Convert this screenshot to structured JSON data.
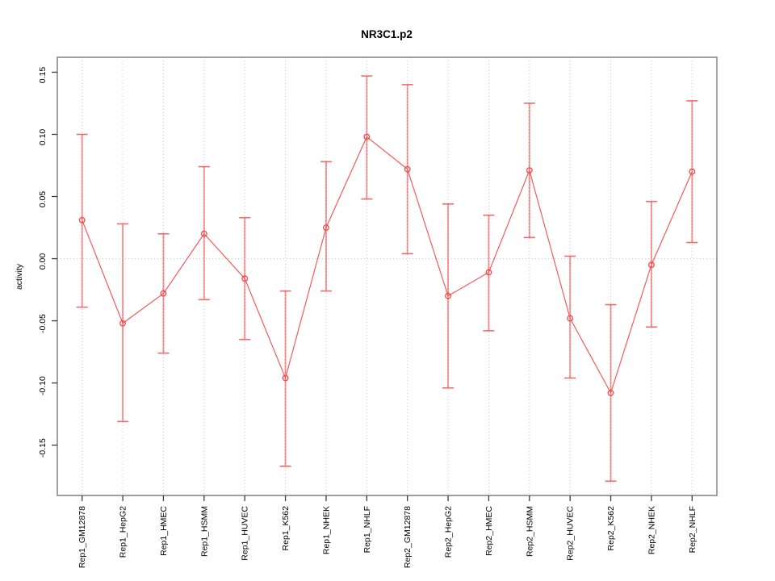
{
  "figure": {
    "background": "#ffffff"
  },
  "chart_data": {
    "type": "line",
    "title": "NR3C1.p2",
    "xlabel": "",
    "ylabel": "activity",
    "legend": "none",
    "grid": "vertical dotted gridline at every category; dotted horizontal line at y=0",
    "categories": [
      "Rep1_GM12878",
      "Rep1_HepG2",
      "Rep1_HMEC",
      "Rep1_HSMM",
      "Rep1_HUVEC",
      "Rep1_K562",
      "Rep1_NHEK",
      "Rep1_NHLF",
      "Rep2_GM12878",
      "Rep2_HepG2",
      "Rep2_HMEC",
      "Rep2_HSMM",
      "Rep2_HUVEC",
      "Rep2_K562",
      "Rep2_NHEK",
      "Rep2_NHLF"
    ],
    "series": [
      {
        "name": "activity",
        "values": [
          0.031,
          -0.052,
          -0.028,
          0.02,
          -0.016,
          -0.096,
          0.025,
          0.098,
          0.072,
          -0.03,
          -0.011,
          0.071,
          -0.048,
          -0.108,
          -0.005,
          0.07
        ],
        "upper": [
          0.1,
          0.028,
          0.02,
          0.074,
          0.033,
          -0.026,
          0.078,
          0.147,
          0.14,
          0.044,
          0.035,
          0.125,
          0.002,
          -0.037,
          0.046,
          0.127
        ],
        "lower": [
          -0.039,
          -0.131,
          -0.076,
          -0.033,
          -0.065,
          -0.167,
          -0.026,
          0.048,
          0.004,
          -0.104,
          -0.058,
          0.017,
          -0.096,
          -0.179,
          -0.055,
          0.013
        ]
      }
    ],
    "ylim": [
      -0.1905,
      0.162
    ],
    "yticks": [
      -0.15,
      -0.1,
      -0.05,
      0.0,
      0.05,
      0.1,
      0.15
    ],
    "ytick_labels": [
      "-0.15",
      "-0.10",
      "-0.05",
      "0.00",
      "0.05",
      "0.10",
      "0.15"
    ],
    "zero_line": 0.0,
    "colors": {
      "series_line": "#f25b5b",
      "marker_stroke": "#ee4a4a",
      "errorbar": "#f7a0a0",
      "errorbar_core": "#ef6b6b",
      "gridline": "#c9c9c9",
      "plot_border": "#808080",
      "tick_mark": "#3c3c3c",
      "text": "#000000"
    }
  }
}
